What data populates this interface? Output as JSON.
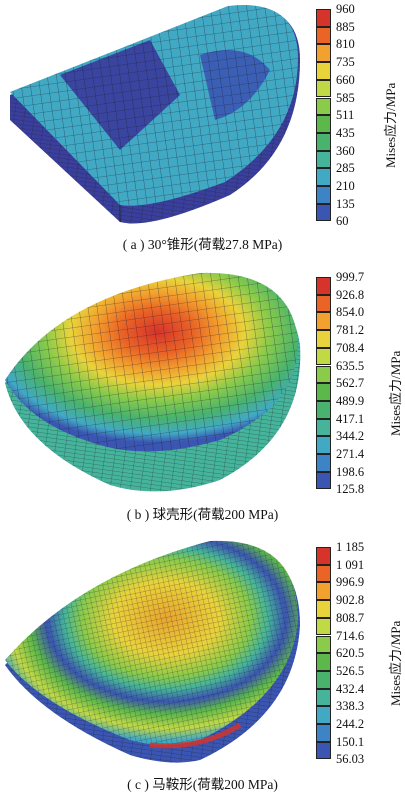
{
  "panels": [
    {
      "caption": "( a ) 30°锥形(荷载27.8 MPa)",
      "colorbar": {
        "ticks": [
          "960",
          "885",
          "810",
          "735",
          "660",
          "585",
          "511",
          "435",
          "360",
          "285",
          "210",
          "135",
          "60"
        ],
        "colors": [
          "#d6332a",
          "#ea6426",
          "#f2a12e",
          "#e9d33b",
          "#c0d945",
          "#8acb4a",
          "#5cb84a",
          "#49b36d",
          "#45b49a",
          "#41a9c4",
          "#3c84c6",
          "#3b56b2",
          "#3a3a9c"
        ],
        "unit": "Mises应力/MPa"
      }
    },
    {
      "caption": "( b ) 球壳形(荷载200 MPa)",
      "colorbar": {
        "ticks": [
          "999.7",
          "926.8",
          "854.0",
          "781.2",
          "708.4",
          "635.5",
          "562.7",
          "489.9",
          "417.1",
          "344.2",
          "271.4",
          "198.6",
          "125.8"
        ],
        "colors": [
          "#d6332a",
          "#ea6426",
          "#f2a12e",
          "#e9d33b",
          "#c0d945",
          "#8acb4a",
          "#5cb84a",
          "#49b36d",
          "#45b49a",
          "#41a9c4",
          "#3c84c6",
          "#3b56b2",
          "#3a3a9c"
        ],
        "unit": "Mises应力/MPa"
      }
    },
    {
      "caption": "( c ) 马鞍形(荷载200 MPa)",
      "colorbar": {
        "ticks": [
          "1 185",
          "1 091",
          "996.9",
          "902.8",
          "808.7",
          "714.6",
          "620.5",
          "526.5",
          "432.4",
          "338.3",
          "244.2",
          "150.1",
          "56.03"
        ],
        "colors": [
          "#d6332a",
          "#ea6426",
          "#f2a12e",
          "#e9d33b",
          "#c0d945",
          "#8acb4a",
          "#5cb84a",
          "#49b36d",
          "#45b49a",
          "#41a9c4",
          "#3c84c6",
          "#3b56b2",
          "#3a3a9c"
        ],
        "unit": "Mises应力/MPa"
      }
    }
  ]
}
